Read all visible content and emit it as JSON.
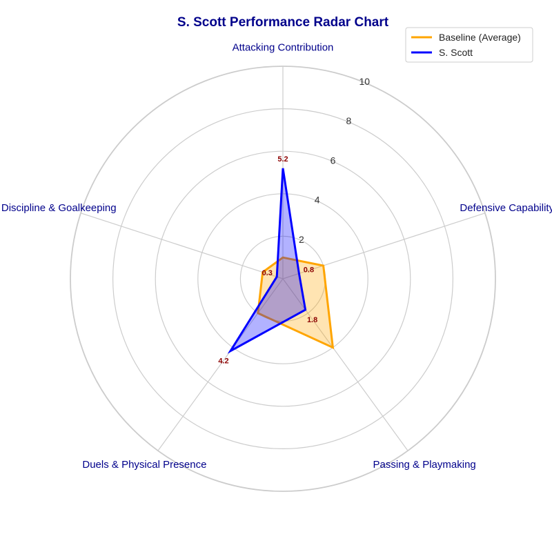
{
  "chart_data": {
    "type": "radar",
    "title": "S. Scott Performance Radar Chart",
    "categories": [
      "Attacking Contribution",
      "Defensive Capability",
      "Passing & Playmaking",
      "Duels & Physical Presence",
      "Discipline & Goalkeeping"
    ],
    "rlim": [
      0,
      10
    ],
    "r_ticks": [
      "2",
      "4",
      "6",
      "8",
      "10"
    ],
    "grid": true,
    "legend_placement": "top-right",
    "series": [
      {
        "name": "Baseline (Average)",
        "color": "#ffa500",
        "values": [
          1.0,
          2.0,
          4.0,
          2.0,
          1.0
        ]
      },
      {
        "name": "S. Scott",
        "color": "#0000ff",
        "values": [
          5.2,
          0.8,
          1.8,
          4.2,
          0.3
        ],
        "data_labels": [
          "5.2",
          "0.8",
          "1.8",
          "4.2",
          "0.3"
        ]
      }
    ]
  }
}
